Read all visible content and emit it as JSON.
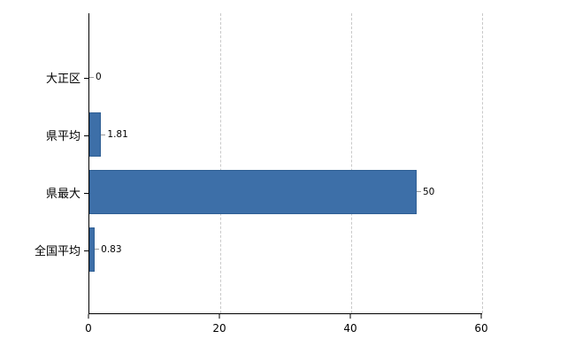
{
  "chart_data": {
    "type": "bar",
    "orientation": "horizontal",
    "title": "",
    "categories": [
      "大正区",
      "県平均",
      "県最大",
      "全国平均"
    ],
    "values": [
      0,
      1.81,
      50,
      0.83
    ],
    "value_labels": [
      "0",
      "1.81",
      "50",
      "0.83"
    ],
    "xlim": [
      0,
      60
    ],
    "xticks": [
      0,
      20,
      40,
      60
    ],
    "xtick_labels": [
      "0",
      "20",
      "40",
      "60"
    ],
    "bar_color": "#3d6fa8",
    "bar_border_color": "#2f5f94",
    "grid": true,
    "grid_style": "dashed",
    "grid_color": "#c9c9c9",
    "axis_color": "#000000",
    "legend": false
  }
}
